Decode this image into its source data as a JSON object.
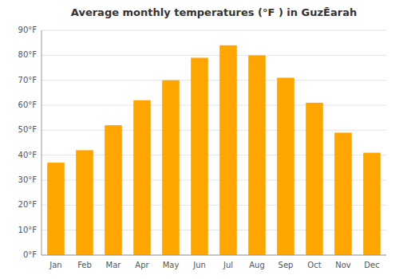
{
  "chart_data": {
    "type": "bar",
    "title": "Average monthly temperatures (°F ) in GuzĒarah",
    "categories": [
      "Jan",
      "Feb",
      "Mar",
      "Apr",
      "May",
      "Jun",
      "Jul",
      "Aug",
      "Sep",
      "Oct",
      "Nov",
      "Dec"
    ],
    "values": [
      37,
      42,
      52,
      62,
      70,
      79,
      84,
      80,
      71,
      61,
      49,
      41
    ],
    "color": "#FFA500",
    "ylim": [
      0,
      90
    ],
    "yticks": [
      {
        "value": 0,
        "label": "0°F"
      },
      {
        "value": 10,
        "label": "10°F"
      },
      {
        "value": 20,
        "label": "20°F"
      },
      {
        "value": 30,
        "label": "30°F"
      },
      {
        "value": 40,
        "label": "40°F"
      },
      {
        "value": 50,
        "label": "50°F"
      },
      {
        "value": 60,
        "label": "60°F"
      },
      {
        "value": 70,
        "label": "70°F"
      },
      {
        "value": 80,
        "label": "80°F"
      },
      {
        "value": 90,
        "label": "90°F"
      }
    ],
    "grid": true
  }
}
